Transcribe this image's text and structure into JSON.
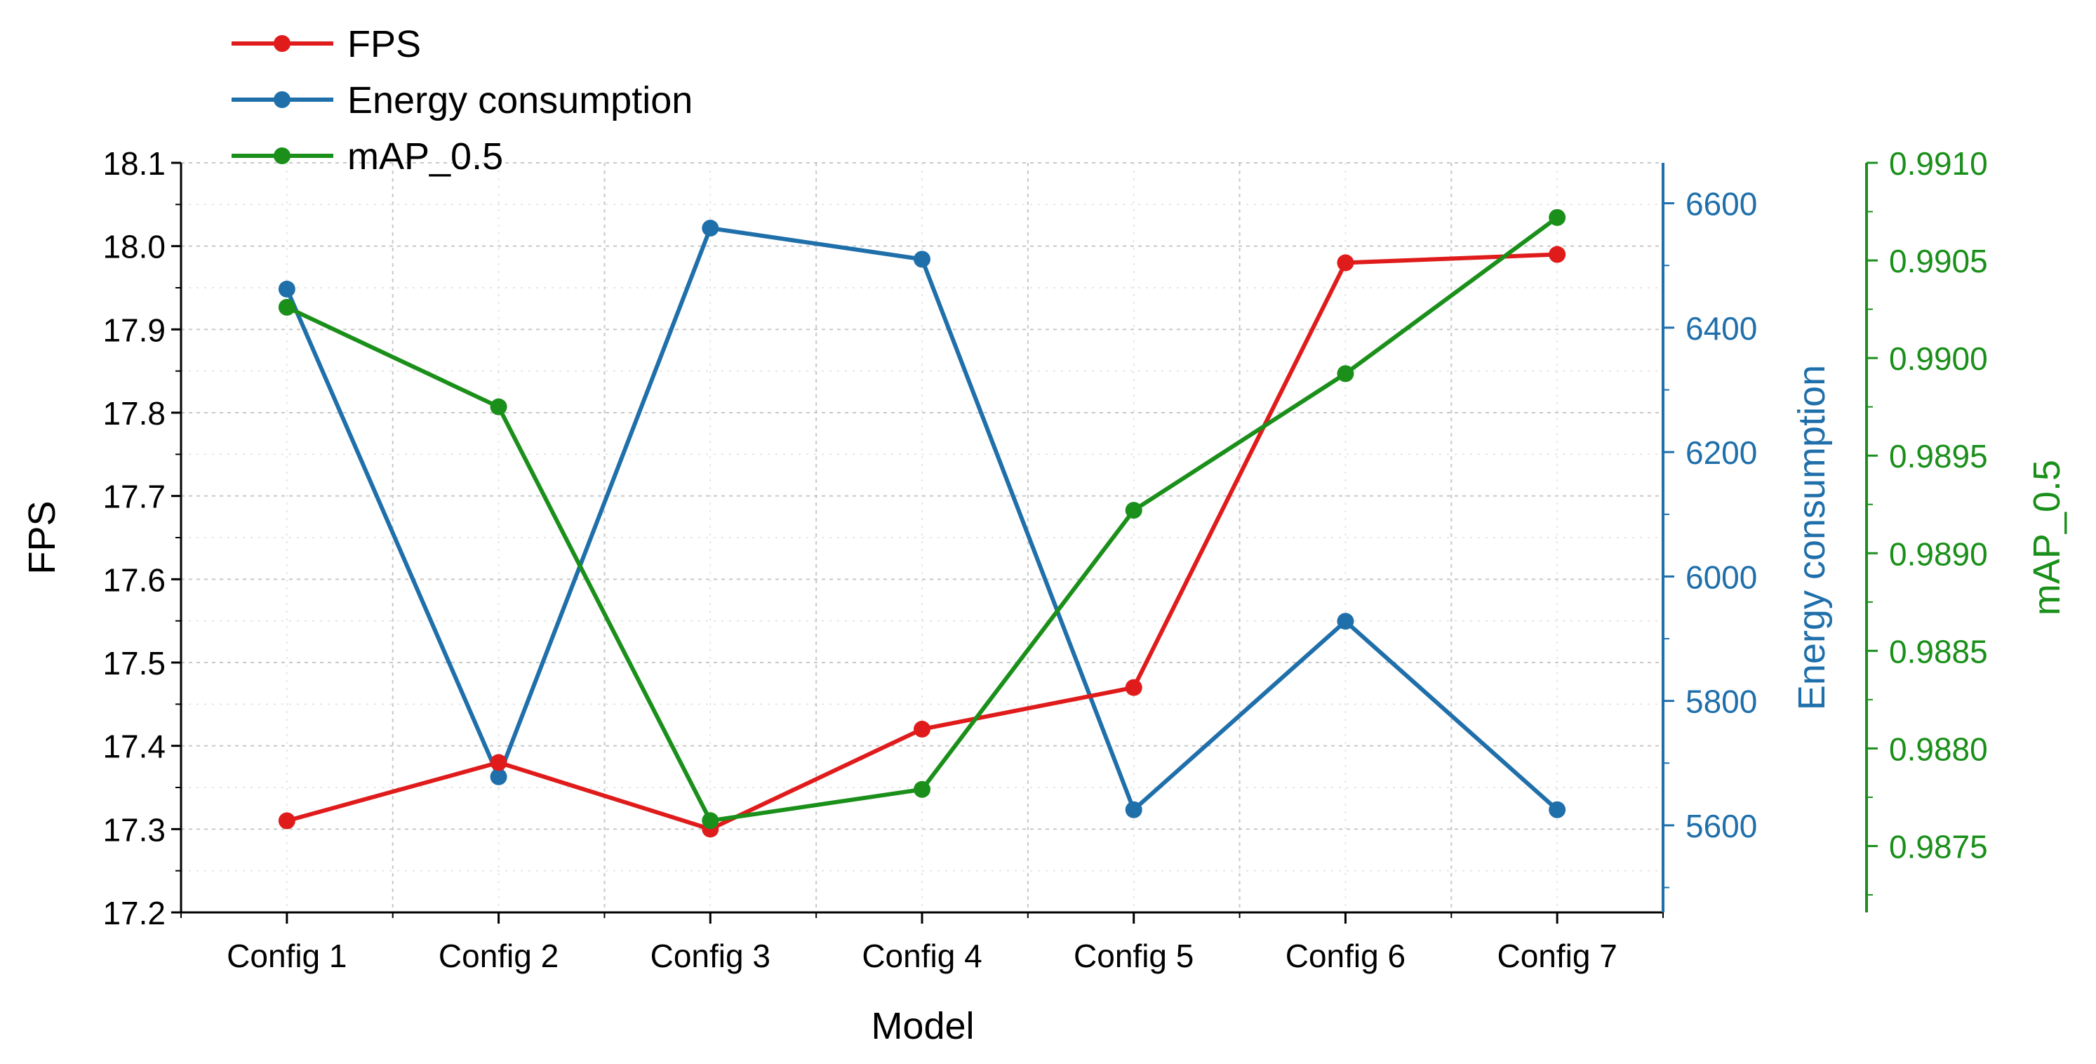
{
  "chart_data": {
    "type": "line",
    "xlabel": "Model",
    "categories": [
      "Config 1",
      "Config 2",
      "Config 3",
      "Config 4",
      "Config 5",
      "Config 6",
      "Config 7"
    ],
    "axes": {
      "left": {
        "label": "FPS",
        "color": "#000000",
        "ylim": [
          17.2,
          18.1
        ],
        "ticks": [
          "17.2",
          "17.3",
          "17.4",
          "17.5",
          "17.6",
          "17.7",
          "17.8",
          "17.9",
          "18.0",
          "18.1"
        ]
      },
      "right1": {
        "label": "Energy consumption",
        "color": "#1f6faa",
        "ylim": [
          5460,
          6665
        ],
        "ticks": [
          "5600",
          "5800",
          "6000",
          "6200",
          "6400",
          "6600"
        ]
      },
      "right2": {
        "label": "mAP_0.5",
        "color": "#1a8f1a",
        "ylim": [
          0.98716,
          0.991
        ],
        "ticks": [
          "0.9875",
          "0.9880",
          "0.9885",
          "0.9890",
          "0.9895",
          "0.9900",
          "0.9905",
          "0.9910"
        ]
      }
    },
    "series": [
      {
        "name": "FPS",
        "axis": "left",
        "color": "#e01b1b",
        "values": [
          17.31,
          17.38,
          17.3,
          17.42,
          17.47,
          17.98,
          17.99
        ]
      },
      {
        "name": "Energy consumption",
        "axis": "right1",
        "color": "#1f6faa",
        "values": [
          6462,
          5678,
          6560,
          6510,
          5625,
          5928,
          5625
        ]
      },
      {
        "name": "mAP_0.5",
        "axis": "right2",
        "color": "#1a8f1a",
        "values": [
          0.99026,
          0.98975,
          0.98763,
          0.98779,
          0.98922,
          0.98992,
          0.99072
        ]
      }
    ],
    "legend": {
      "position": "top-left",
      "entries": [
        "FPS",
        "Energy consumption",
        "mAP_0.5"
      ]
    },
    "grid": true
  }
}
